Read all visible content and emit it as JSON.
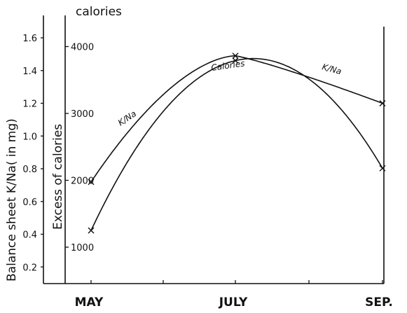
{
  "chart_data": {
    "type": "line",
    "x_categories": [
      "MAY",
      "JULY",
      "SEP."
    ],
    "left_axis": {
      "label": "Balance sheet K/Na( in mg)",
      "ylim": [
        0,
        1.7
      ],
      "ticks": [
        0.2,
        0.4,
        0.6,
        0.8,
        1.0,
        1.2,
        1.4,
        1.6
      ],
      "tick_labels": [
        "0.2",
        "0.4",
        "0.6",
        "0.8",
        "1.0",
        "1.2",
        "1.4",
        "1.6"
      ]
    },
    "right_axis": {
      "label": "Excess of calories",
      "unit": "calories",
      "ylim": [
        0,
        4300
      ],
      "ticks": [
        1000,
        2000,
        3000,
        4000
      ],
      "tick_labels": [
        "1000",
        "2000",
        "3000",
        "4000"
      ]
    },
    "series": [
      {
        "name": "K/Na",
        "axis": "left",
        "points": [
          {
            "x": "MAY",
            "y": 0.72
          },
          {
            "x": "JULY",
            "y": 1.49
          },
          {
            "x": "SEP.",
            "y": 1.2
          }
        ]
      },
      {
        "name": "Calories",
        "axis": "right",
        "points": [
          {
            "x": "MAY",
            "y": 1250
          },
          {
            "x": "JULY",
            "y": 3790
          },
          {
            "x": "SEP.",
            "y": 2180
          }
        ]
      }
    ],
    "grid": false,
    "legend": "inline labels on curves"
  }
}
